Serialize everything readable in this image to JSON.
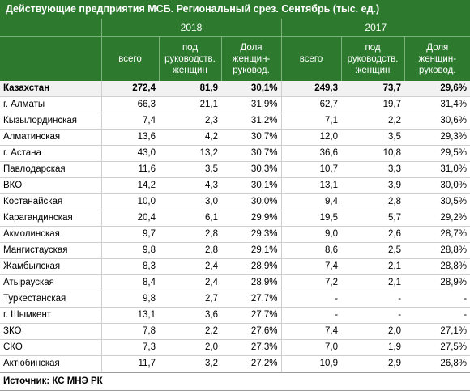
{
  "title": "Действующие предприятия МСБ. Региональный срез. Сентябрь (тыс. ед.)",
  "years": [
    "2018",
    "2017"
  ],
  "columns": [
    "всего",
    "под руководств. женщин",
    "Доля женщин-руковод.",
    "всего",
    "под руководств. женщин",
    "Доля женщин-руковод."
  ],
  "rows": [
    {
      "region": "Казахстан",
      "v2018_total": "272,4",
      "v2018_women": "81,9",
      "v2018_share": "30,1%",
      "v2017_total": "249,3",
      "v2017_women": "73,7",
      "v2017_share": "29,6%"
    },
    {
      "region": "г. Алматы",
      "v2018_total": "66,3",
      "v2018_women": "21,1",
      "v2018_share": "31,9%",
      "v2017_total": "62,7",
      "v2017_women": "19,7",
      "v2017_share": "31,4%"
    },
    {
      "region": "Кызылординская",
      "v2018_total": "7,4",
      "v2018_women": "2,3",
      "v2018_share": "31,2%",
      "v2017_total": "7,1",
      "v2017_women": "2,2",
      "v2017_share": "30,6%"
    },
    {
      "region": "Алматинская",
      "v2018_total": "13,6",
      "v2018_women": "4,2",
      "v2018_share": "30,7%",
      "v2017_total": "12,0",
      "v2017_women": "3,5",
      "v2017_share": "29,3%"
    },
    {
      "region": "г. Астана",
      "v2018_total": "43,0",
      "v2018_women": "13,2",
      "v2018_share": "30,7%",
      "v2017_total": "36,6",
      "v2017_women": "10,8",
      "v2017_share": "29,5%"
    },
    {
      "region": "Павлодарская",
      "v2018_total": "11,6",
      "v2018_women": "3,5",
      "v2018_share": "30,3%",
      "v2017_total": "10,7",
      "v2017_women": "3,3",
      "v2017_share": "31,0%"
    },
    {
      "region": "ВКО",
      "v2018_total": "14,2",
      "v2018_women": "4,3",
      "v2018_share": "30,1%",
      "v2017_total": "13,1",
      "v2017_women": "3,9",
      "v2017_share": "30,0%"
    },
    {
      "region": "Костанайская",
      "v2018_total": "10,0",
      "v2018_women": "3,0",
      "v2018_share": "30,0%",
      "v2017_total": "9,4",
      "v2017_women": "2,8",
      "v2017_share": "30,5%"
    },
    {
      "region": "Карагандинская",
      "v2018_total": "20,4",
      "v2018_women": "6,1",
      "v2018_share": "29,9%",
      "v2017_total": "19,5",
      "v2017_women": "5,7",
      "v2017_share": "29,2%"
    },
    {
      "region": "Акмолинская",
      "v2018_total": "9,7",
      "v2018_women": "2,8",
      "v2018_share": "29,3%",
      "v2017_total": "9,0",
      "v2017_women": "2,6",
      "v2017_share": "28,7%"
    },
    {
      "region": "Мангистауская",
      "v2018_total": "9,8",
      "v2018_women": "2,8",
      "v2018_share": "29,1%",
      "v2017_total": "8,6",
      "v2017_women": "2,5",
      "v2017_share": "28,8%"
    },
    {
      "region": "Жамбылская",
      "v2018_total": "8,3",
      "v2018_women": "2,4",
      "v2018_share": "28,9%",
      "v2017_total": "7,4",
      "v2017_women": "2,1",
      "v2017_share": "28,8%"
    },
    {
      "region": "Атырауская",
      "v2018_total": "8,4",
      "v2018_women": "2,4",
      "v2018_share": "28,9%",
      "v2017_total": "7,2",
      "v2017_women": "2,1",
      "v2017_share": "28,9%"
    },
    {
      "region": "Туркестанская",
      "v2018_total": "9,8",
      "v2018_women": "2,7",
      "v2018_share": "27,7%",
      "v2017_total": "-",
      "v2017_women": "-",
      "v2017_share": "-"
    },
    {
      "region": "г. Шымкент",
      "v2018_total": "13,1",
      "v2018_women": "3,6",
      "v2018_share": "27,7%",
      "v2017_total": "-",
      "v2017_women": "-",
      "v2017_share": "-"
    },
    {
      "region": "ЗКО",
      "v2018_total": "7,8",
      "v2018_women": "2,2",
      "v2018_share": "27,6%",
      "v2017_total": "7,4",
      "v2017_women": "2,0",
      "v2017_share": "27,1%"
    },
    {
      "region": "СКО",
      "v2018_total": "7,3",
      "v2018_women": "2,0",
      "v2018_share": "27,3%",
      "v2017_total": "7,0",
      "v2017_women": "1,9",
      "v2017_share": "27,5%"
    },
    {
      "region": "Актюбинская",
      "v2018_total": "11,7",
      "v2018_women": "3,2",
      "v2018_share": "27,2%",
      "v2017_total": "10,9",
      "v2017_women": "2,9",
      "v2017_share": "26,8%"
    }
  ],
  "source": "Источник: КС МНЭ РК",
  "colors": {
    "header_green": "#2d7a2f",
    "total_row_bg": "#f1f1f1"
  }
}
